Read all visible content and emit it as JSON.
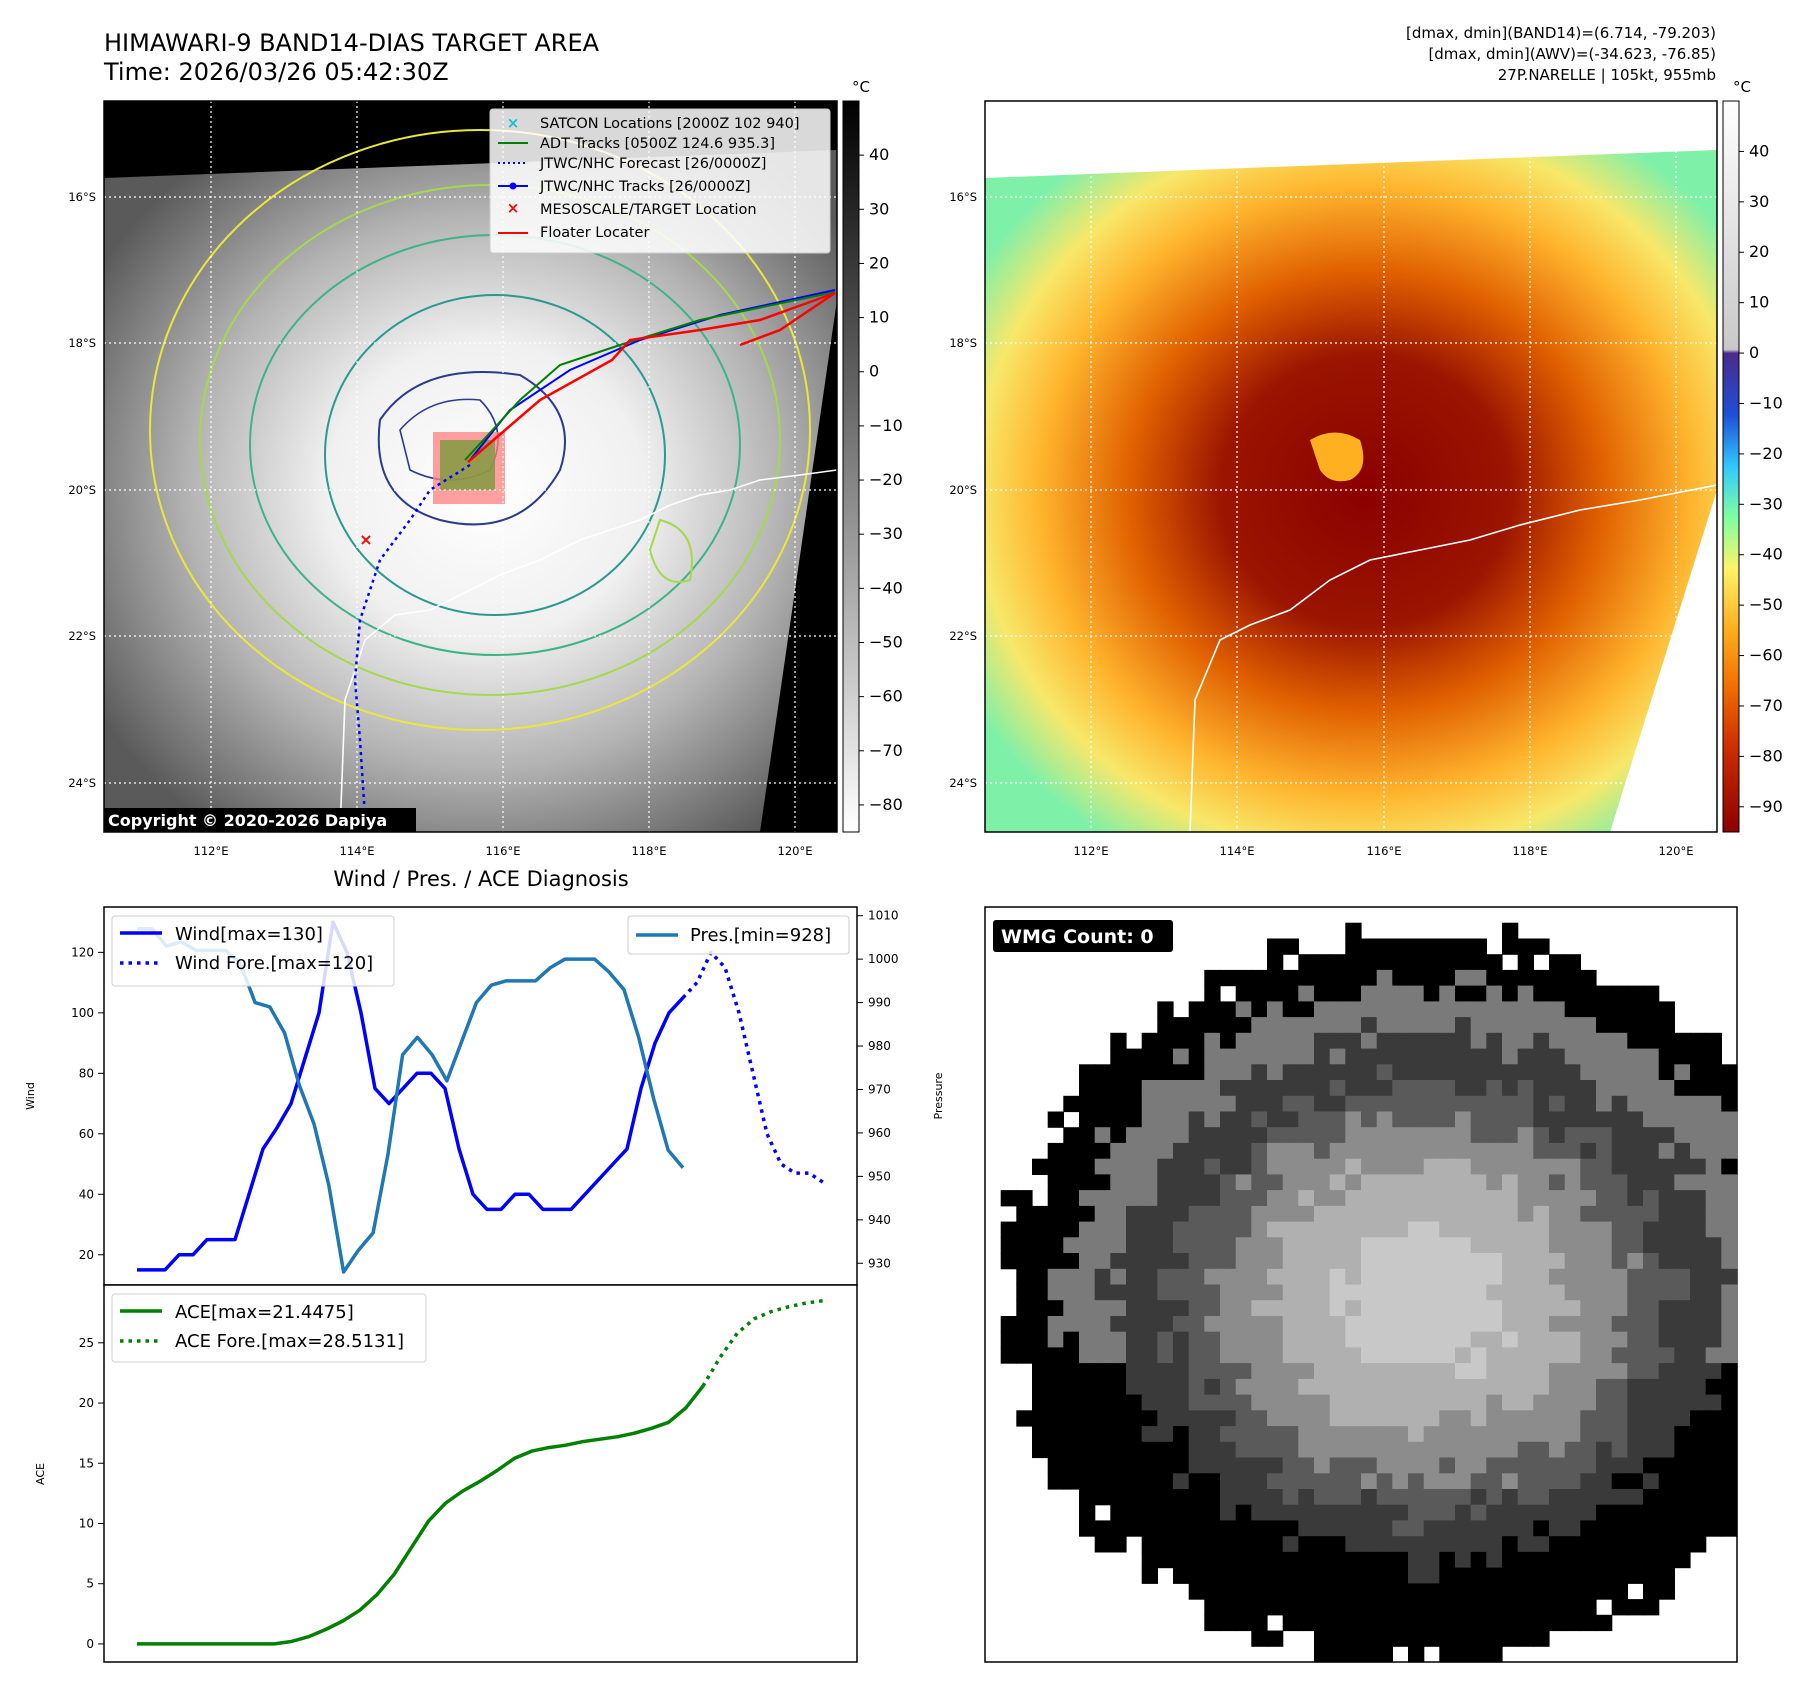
{
  "header": {
    "title_line1": "HIMAWARI-9 BAND14-DIAS TARGET AREA",
    "title_line2": "Time: 2026/03/26 05:42:30Z",
    "right_line1": "[dmax, dmin](BAND14)=(6.714, -79.203)",
    "right_line2": "[dmax, dmin](AWV)=(-34.623, -76.85)",
    "right_line3": "27P.NARELLE | 105kt, 955mb"
  },
  "map_axes": {
    "lat_labels": [
      "16°S",
      "18°S",
      "20°S",
      "22°S",
      "24°S"
    ],
    "lon_labels": [
      "112°E",
      "114°E",
      "116°E",
      "118°E",
      "120°E"
    ]
  },
  "colorbar_left": {
    "unit": "°C",
    "ticks": [
      "40",
      "30",
      "20",
      "10",
      "0",
      "−10",
      "−20",
      "−30",
      "−40",
      "−50",
      "−60",
      "−70",
      "−80"
    ]
  },
  "colorbar_right": {
    "unit": "°C",
    "ticks": [
      "40",
      "30",
      "20",
      "10",
      "0",
      "−10",
      "−20",
      "−30",
      "−40",
      "−50",
      "−60",
      "−70",
      "−80",
      "−90"
    ]
  },
  "legend": [
    {
      "label": "SATCON Locations [2000Z 102 940]",
      "marker": "x",
      "color": "#17becf"
    },
    {
      "label": "ADT Tracks [0500Z 124.6 935.3]",
      "marker": "line",
      "color": "#008000"
    },
    {
      "label": "JTWC/NHC Forecast [26/0000Z]",
      "marker": "dotted",
      "color": "#0000ff"
    },
    {
      "label": "JTWC/NHC Tracks [26/0000Z]",
      "marker": "line-dot",
      "color": "#0000ff"
    },
    {
      "label": "MESOSCALE/TARGET Location",
      "marker": "x",
      "color": "#ff0000"
    },
    {
      "label": "Floater Locater",
      "marker": "line",
      "color": "#ff0000"
    }
  ],
  "copyright": "Copyright © 2020-2026 Dapiya",
  "wmg_label": "WMG Count: 0",
  "chart_data": [
    {
      "type": "line",
      "title": "Wind / Pres. / ACE Diagnosis",
      "ylabel": "Wind",
      "ylim": [
        10,
        135
      ],
      "y_ticks": [
        20,
        40,
        60,
        80,
        100,
        120
      ],
      "series": [
        {
          "name": "Wind[max=130]",
          "color": "#0000ff",
          "style": "solid",
          "values": [
            15,
            15,
            15,
            20,
            20,
            25,
            25,
            25,
            40,
            55,
            62,
            70,
            85,
            100,
            130,
            120,
            100,
            75,
            70,
            75,
            80,
            80,
            75,
            55,
            40,
            35,
            35,
            40,
            40,
            35,
            35,
            35,
            40,
            45,
            50,
            55,
            75,
            90,
            100,
            105
          ]
        },
        {
          "name": "Wind Fore.[max=120]",
          "color": "#0000ff",
          "style": "dotted",
          "values": [
            105,
            110,
            120,
            115,
            100,
            80,
            60,
            50,
            47,
            47,
            44
          ]
        }
      ]
    },
    {
      "type": "line",
      "ylabel": "Pressure",
      "ylim": [
        925,
        1012
      ],
      "y_ticks": [
        930,
        940,
        950,
        960,
        970,
        980,
        990,
        1000,
        1010
      ],
      "series": [
        {
          "name": "Pres.[min=928]",
          "color": "#1f77b4",
          "style": "solid",
          "values": [
            1007,
            1007,
            1003,
            1004,
            1002,
            1002,
            1002,
            999,
            990,
            989,
            983,
            971,
            962,
            948,
            928,
            933,
            937,
            955,
            978,
            982,
            978,
            972,
            981,
            990,
            994,
            995,
            995,
            995,
            998,
            1000,
            1000,
            1000,
            997,
            993,
            982,
            968,
            956,
            952
          ]
        }
      ]
    },
    {
      "type": "line",
      "ylabel": "ACE",
      "ylim": [
        -1.5,
        29.8
      ],
      "y_ticks": [
        0,
        5,
        10,
        15,
        20,
        25
      ],
      "series": [
        {
          "name": "ACE[max=21.4475]",
          "color": "#008000",
          "style": "solid",
          "values": [
            0,
            0,
            0,
            0,
            0,
            0,
            0,
            0,
            0,
            0.2,
            0.6,
            1.2,
            1.9,
            2.8,
            4.1,
            5.8,
            8.0,
            10.2,
            11.7,
            12.7,
            13.5,
            14.4,
            15.4,
            16.0,
            16.3,
            16.5,
            16.8,
            17.0,
            17.2,
            17.5,
            17.9,
            18.4,
            19.6,
            21.4
          ]
        },
        {
          "name": "ACE Fore.[max=28.5131]",
          "color": "#008000",
          "style": "dotted",
          "values": [
            21.4,
            23.8,
            25.8,
            27.0,
            27.6,
            28.0,
            28.3,
            28.5
          ]
        }
      ]
    }
  ]
}
